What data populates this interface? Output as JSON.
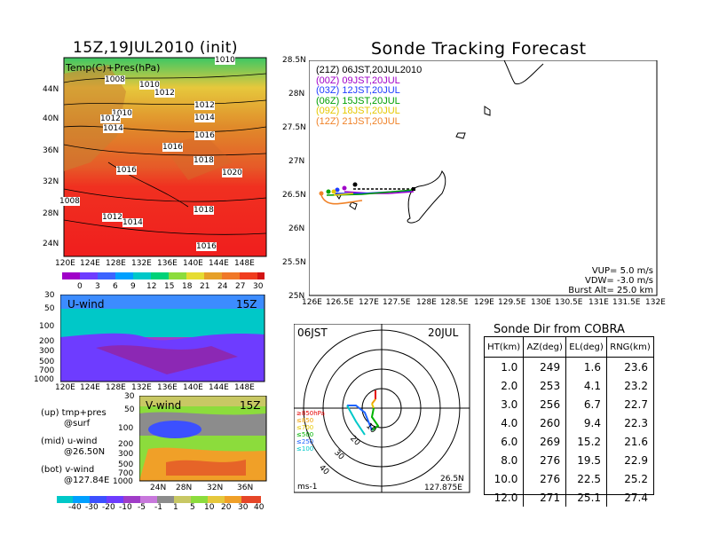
{
  "map_panel": {
    "title": "15Z,19JUL2010 (init)",
    "inner_label": "Temp(C)+Pres(hPa)",
    "lat_ticks": [
      "44N",
      "40N",
      "36N",
      "32N",
      "28N",
      "24N"
    ],
    "lon_ticks": [
      "120E",
      "124E",
      "128E",
      "132E",
      "136E",
      "140E",
      "144E",
      "148E"
    ],
    "isobars": [
      "1008",
      "1010",
      "1012",
      "1010",
      "1012",
      "1014",
      "1012",
      "1016",
      "1014",
      "1016",
      "1018",
      "1016",
      "1020",
      "1008",
      "1012",
      "1014",
      "1018",
      "1016",
      "1010"
    ],
    "colorbar_ticks": [
      "0",
      "3",
      "6",
      "9",
      "12",
      "15",
      "18",
      "21",
      "24",
      "27",
      "30"
    ]
  },
  "u_panel": {
    "label": "U-wind",
    "time": "15Z",
    "p_ticks": [
      "30",
      "50",
      "100",
      "200",
      "300",
      "500",
      "700",
      "1000"
    ],
    "lon_ticks": [
      "120E",
      "124E",
      "128E",
      "132E",
      "136E",
      "140E",
      "144E",
      "148E"
    ]
  },
  "v_panel": {
    "label": "V-wind",
    "time": "15Z",
    "p_ticks": [
      "30",
      "50",
      "100",
      "200",
      "300",
      "500",
      "700",
      "1000"
    ],
    "lat_ticks": [
      "24N",
      "28N",
      "32N",
      "36N"
    ],
    "colorbar_ticks": [
      "-40",
      "-30",
      "-20",
      "-10",
      "-5",
      "-1",
      "1",
      "5",
      "10",
      "20",
      "30",
      "40"
    ]
  },
  "legend_notes": {
    "up": "(up) tmp+pres",
    "up2": "@surf",
    "mid": "(mid) u-wind",
    "mid2": "@26.50N",
    "bot": "(bot) v-wind",
    "bot2": "@127.84E"
  },
  "tracking": {
    "title": "Sonde Tracking Forecast",
    "lat_ticks": [
      "28.5N",
      "28N",
      "27.5N",
      "27N",
      "26.5N",
      "26N",
      "25.5N",
      "25N"
    ],
    "lon_ticks": [
      "126E",
      "126.5E",
      "127E",
      "127.5E",
      "128E",
      "128.5E",
      "129E",
      "129.5E",
      "130E",
      "130.5E",
      "131E",
      "131.5E",
      "132E"
    ],
    "launches": [
      {
        "label": "(21Z)  06JST,20JUL2010",
        "color": "#000000"
      },
      {
        "label": "(00Z)  09JST,20JUL",
        "color": "#a000c8"
      },
      {
        "label": "(03Z)  12JST,20JUL",
        "color": "#1e3cff"
      },
      {
        "label": "(06Z)  15JST,20JUL",
        "color": "#00a000"
      },
      {
        "label": "(09Z)  18JST,20JUL",
        "color": "#e6c800"
      },
      {
        "label": "(12Z)  21JST,20JUL",
        "color": "#f08228"
      }
    ],
    "vup": "VUP=  5.0  m/s",
    "vdw": "VDW= -3.0  m/s",
    "burst": "Burst Alt=  25.0  km"
  },
  "hodograph": {
    "label_left": "06JST",
    "label_right": "20JUL",
    "units": "ms-1",
    "loc1": "26.5N",
    "loc2": "127.875E",
    "ring_labels": [
      "10",
      "20",
      "30",
      "40"
    ],
    "levels": [
      {
        "label": "≥850hPa",
        "color": "#e60000"
      },
      {
        "label": "≤850",
        "color": "#f0a000"
      },
      {
        "label": "≤700",
        "color": "#e6c800"
      },
      {
        "label": "≤500",
        "color": "#00b400"
      },
      {
        "label": "≤250",
        "color": "#1e64ff"
      },
      {
        "label": "≤100",
        "color": "#00c8c8"
      }
    ]
  },
  "sonde_dir": {
    "title": "Sonde Dir from COBRA",
    "headers": [
      "HT(km)",
      "AZ(deg)",
      "EL(deg)",
      "RNG(km)"
    ],
    "rows": [
      [
        "1.0",
        "249",
        "1.6",
        "23.6"
      ],
      [
        "2.0",
        "253",
        "4.1",
        "23.2"
      ],
      [
        "3.0",
        "256",
        "6.7",
        "22.7"
      ],
      [
        "4.0",
        "260",
        "9.4",
        "22.3"
      ],
      [
        "6.0",
        "269",
        "15.2",
        "21.6"
      ],
      [
        "8.0",
        "276",
        "19.5",
        "22.9"
      ],
      [
        "10.0",
        "276",
        "22.5",
        "25.2"
      ],
      [
        "12.0",
        "271",
        "25.1",
        "27.4"
      ]
    ]
  }
}
